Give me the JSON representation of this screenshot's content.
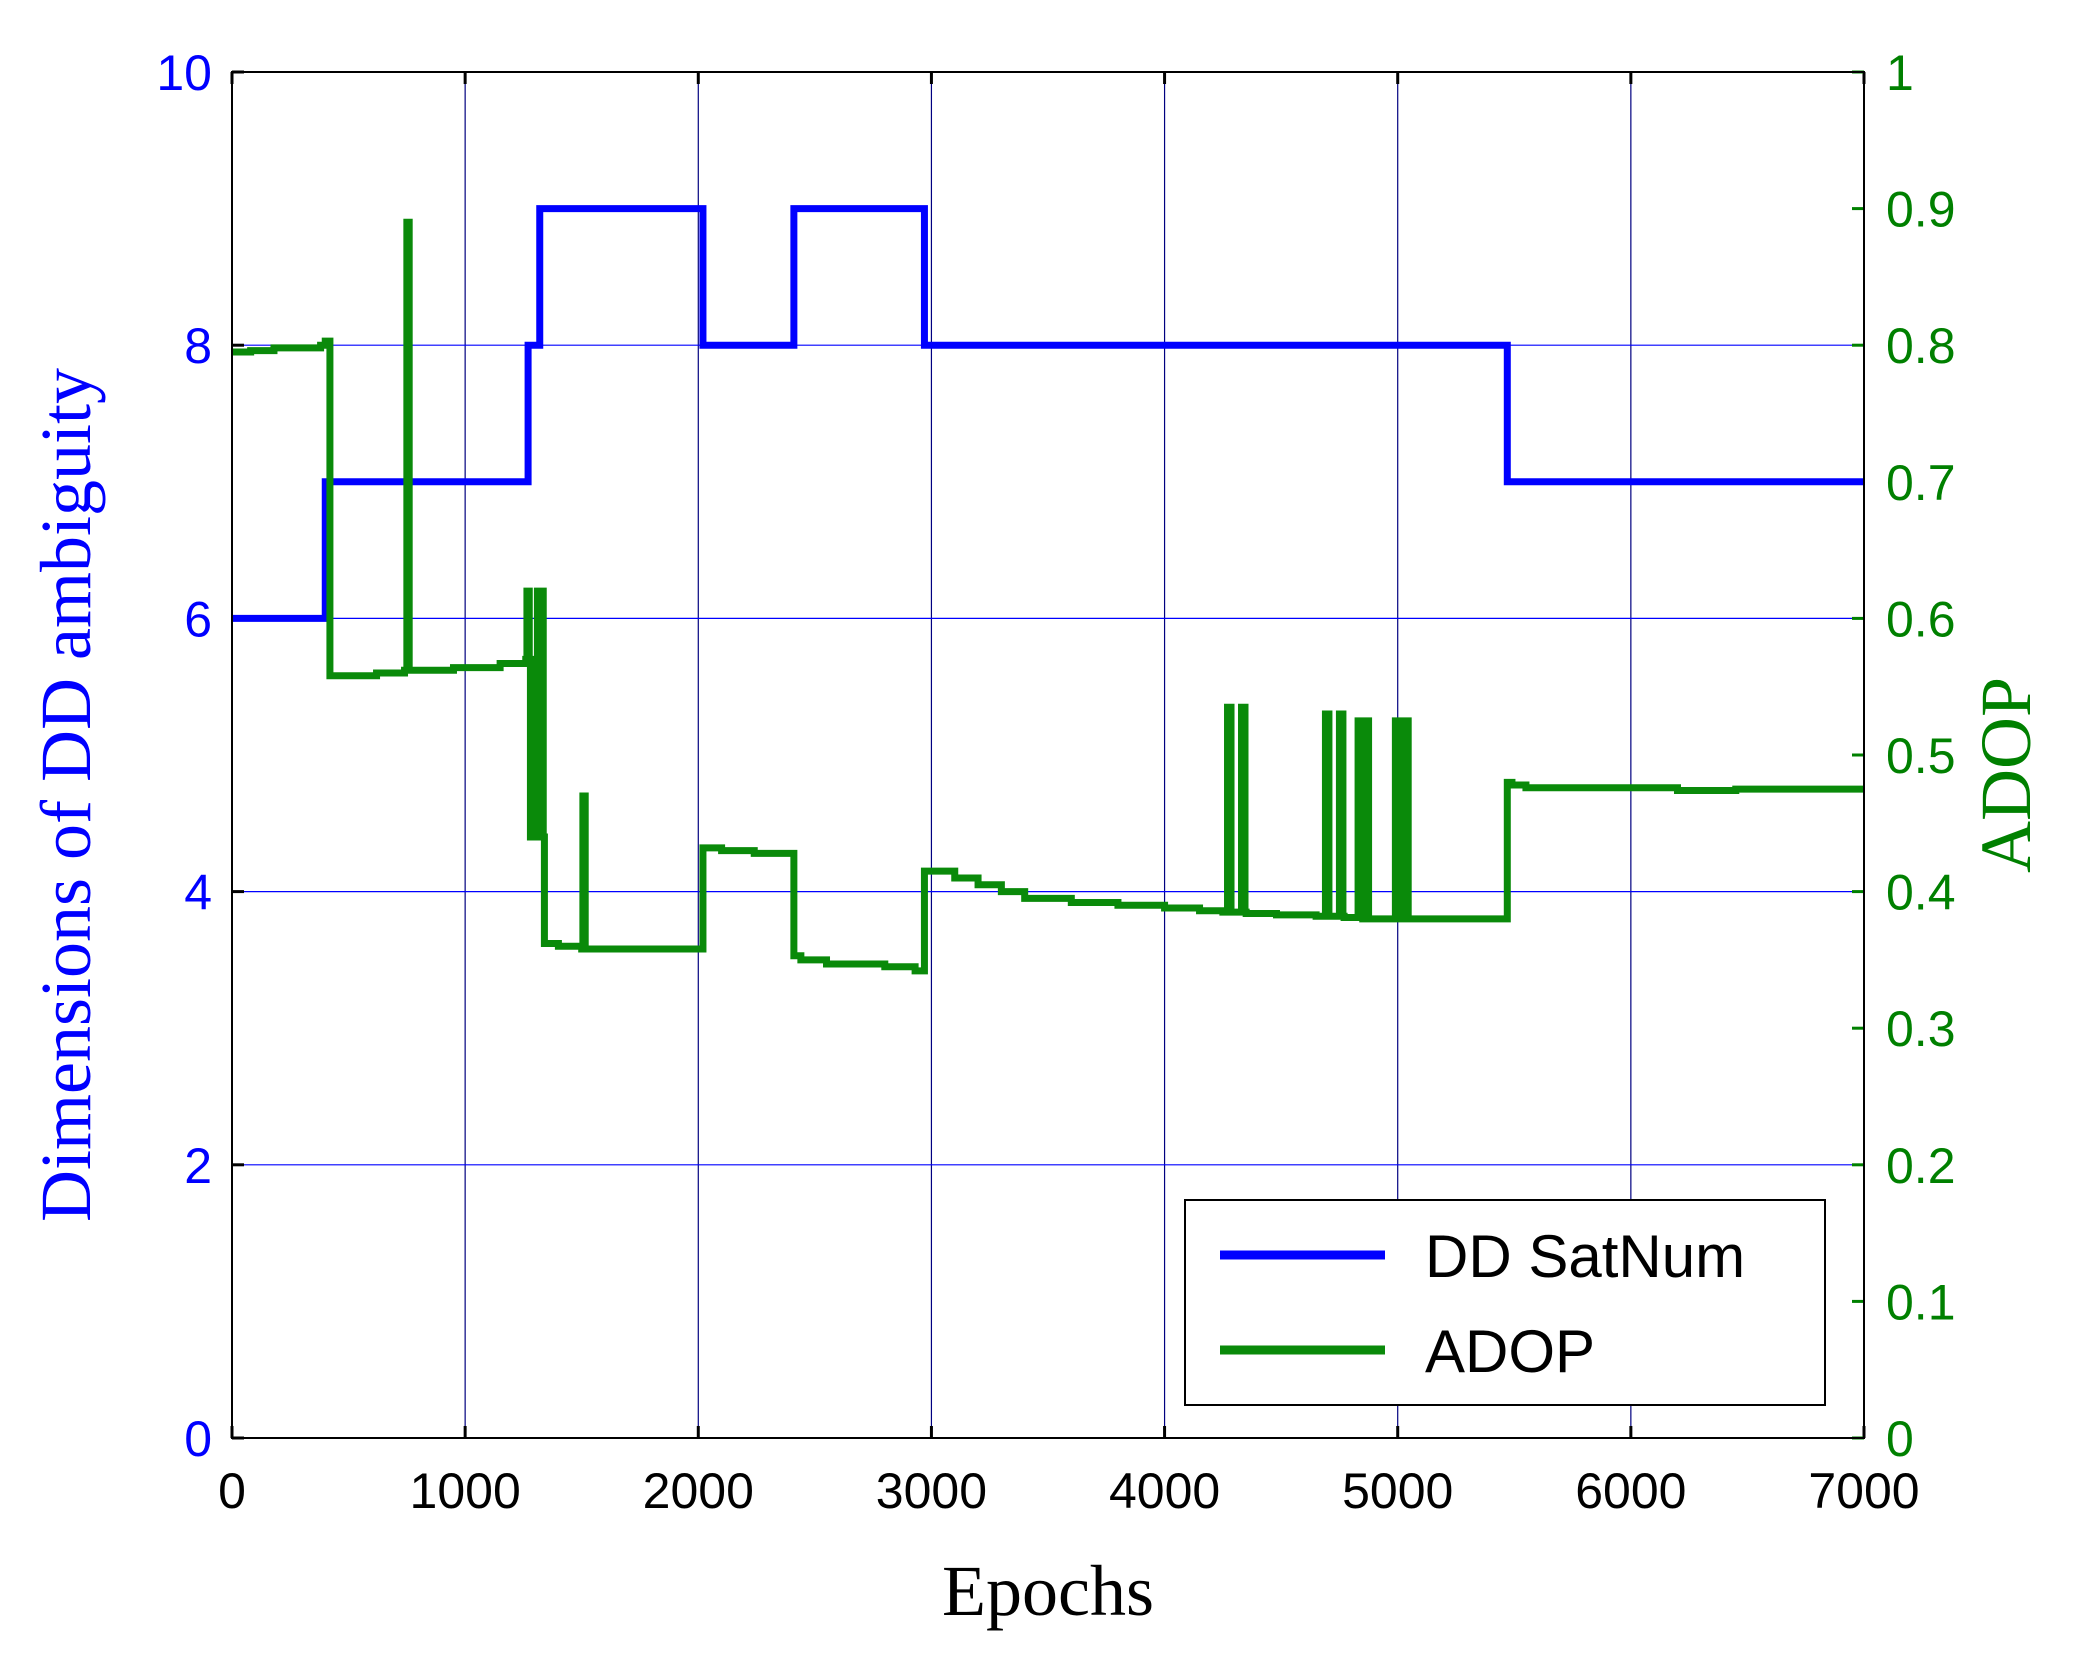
{
  "colors": {
    "left_axis": "#0000ff",
    "right_axis": "#008000",
    "grid_x": "#000080",
    "grid_y": "#0000ff",
    "series_dd": "#0000ff",
    "series_adop": "#0a8a0a"
  },
  "chart_data": {
    "type": "line",
    "title": "",
    "xlabel": "Epochs",
    "ylabel": "Dimensions of DD ambiguity",
    "y2label": "ADOP",
    "xlim": [
      0,
      7000
    ],
    "ylim": [
      0,
      10
    ],
    "y2lim": [
      0,
      1
    ],
    "x_ticks": [
      0,
      1000,
      2000,
      3000,
      4000,
      5000,
      6000,
      7000
    ],
    "y_ticks": [
      0,
      2,
      4,
      6,
      8,
      10
    ],
    "y2_ticks": [
      "0",
      "0.1",
      "0.2",
      "0.3",
      "0.4",
      "0.5",
      "0.6",
      "0.7",
      "0.8",
      "0.9",
      "1"
    ],
    "grid": true,
    "legend_position": "bottom-right",
    "series": [
      {
        "name": "DD SatNum",
        "axis": "left",
        "step": true,
        "x": [
          0,
          400,
          1270,
          1320,
          2020,
          2410,
          2970,
          5470,
          7000
        ],
        "y": [
          6,
          7,
          8,
          9,
          8,
          9,
          8,
          7,
          7
        ]
      },
      {
        "name": "ADOP",
        "axis": "right",
        "step": true,
        "x": [
          0,
          80,
          180,
          380,
          400,
          420,
          620,
          740,
          750,
          760,
          950,
          1150,
          1260,
          1265,
          1275,
          1280,
          1300,
          1310,
          1320,
          1325,
          1335,
          1340,
          1400,
          1500,
          1505,
          1515,
          1520,
          2020,
          2100,
          2240,
          2410,
          2440,
          2550,
          2800,
          2930,
          2970,
          3100,
          3200,
          3300,
          3400,
          3600,
          3800,
          4000,
          4150,
          4250,
          4270,
          4285,
          4290,
          4330,
          4345,
          4350,
          4480,
          4650,
          4690,
          4705,
          4710,
          4750,
          4765,
          4770,
          4830,
          4845,
          4850,
          4860,
          4875,
          4880,
          4990,
          5005,
          5010,
          5030,
          5045,
          5050,
          5470,
          5490,
          5550,
          6200,
          6450,
          7000
        ],
        "y": [
          0.795,
          0.796,
          0.798,
          0.8,
          0.803,
          0.558,
          0.56,
          0.562,
          0.89,
          0.562,
          0.564,
          0.567,
          0.57,
          0.62,
          0.57,
          0.44,
          0.44,
          0.62,
          0.44,
          0.62,
          0.44,
          0.362,
          0.36,
          0.358,
          0.47,
          0.358,
          0.358,
          0.432,
          0.43,
          0.428,
          0.353,
          0.35,
          0.347,
          0.345,
          0.342,
          0.415,
          0.41,
          0.405,
          0.4,
          0.395,
          0.392,
          0.39,
          0.388,
          0.386,
          0.385,
          0.535,
          0.385,
          0.385,
          0.535,
          0.385,
          0.384,
          0.383,
          0.382,
          0.53,
          0.382,
          0.382,
          0.53,
          0.382,
          0.381,
          0.525,
          0.381,
          0.38,
          0.525,
          0.38,
          0.38,
          0.525,
          0.38,
          0.38,
          0.525,
          0.38,
          0.38,
          0.48,
          0.478,
          0.476,
          0.474,
          0.475,
          0.475
        ]
      }
    ]
  }
}
